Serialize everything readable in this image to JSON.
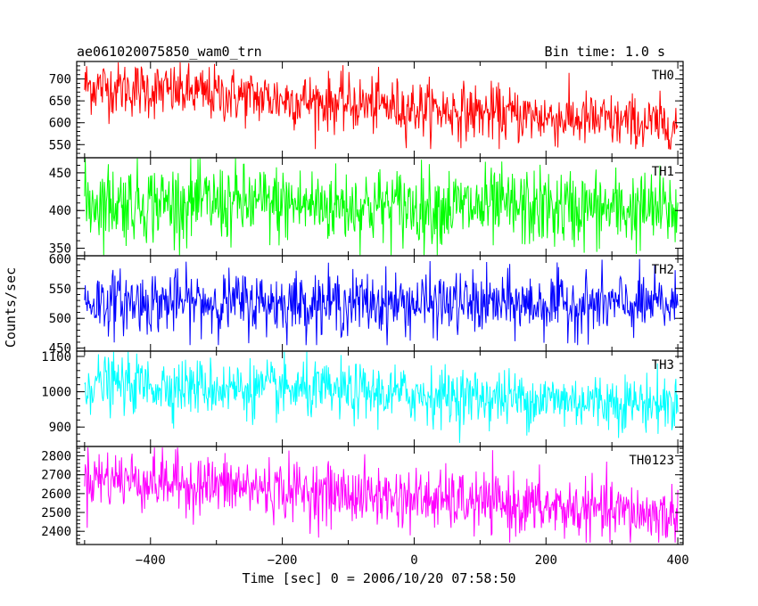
{
  "header": {
    "left_title": "ae061020075850_wam0_trn",
    "right_title": "Bin time: 1.0 s"
  },
  "chart_data": {
    "type": "line",
    "xlabel": "Time [sec] 0 = 2006/10/20 07:58:50",
    "ylabel": "Counts/sec",
    "xlim": [
      -512,
      408
    ],
    "x_ticks": [
      -400,
      -200,
      0,
      200,
      400
    ],
    "x_tick_labels": [
      "−400",
      "−200",
      "0",
      "200",
      "400"
    ],
    "x_step": 1,
    "x_range": [
      -500,
      400
    ],
    "panels": [
      {
        "name": "TH0",
        "color": "#ff0000",
        "ylim": [
          520,
          740
        ],
        "yticks": [
          550,
          600,
          650,
          700
        ],
        "start": 685,
        "end": 592,
        "noise": 32,
        "clip": [
          540,
          738
        ]
      },
      {
        "name": "TH1",
        "color": "#00ff00",
        "ylim": [
          340,
          470
        ],
        "yticks": [
          350,
          400,
          450
        ],
        "start": 412,
        "end": 400,
        "noise": 26,
        "clip": [
          341,
          469
        ]
      },
      {
        "name": "TH2",
        "color": "#0000ff",
        "ylim": [
          445,
          605
        ],
        "yticks": [
          450,
          500,
          550,
          600
        ],
        "start": 528,
        "end": 522,
        "noise": 26,
        "clip": [
          455,
          603
        ]
      },
      {
        "name": "TH3",
        "color": "#00ffff",
        "ylim": [
          845,
          1115
        ],
        "yticks": [
          900,
          1000,
          1100
        ],
        "start": 1025,
        "end": 965,
        "noise": 40,
        "clip": [
          855,
          1113
        ]
      },
      {
        "name": "TH0123",
        "color": "#ff00ff",
        "ylim": [
          2330,
          2850
        ],
        "yticks": [
          2400,
          2500,
          2600,
          2700,
          2800
        ],
        "start": 2690,
        "end": 2480,
        "noise": 80,
        "clip": [
          2340,
          2845
        ]
      }
    ]
  }
}
